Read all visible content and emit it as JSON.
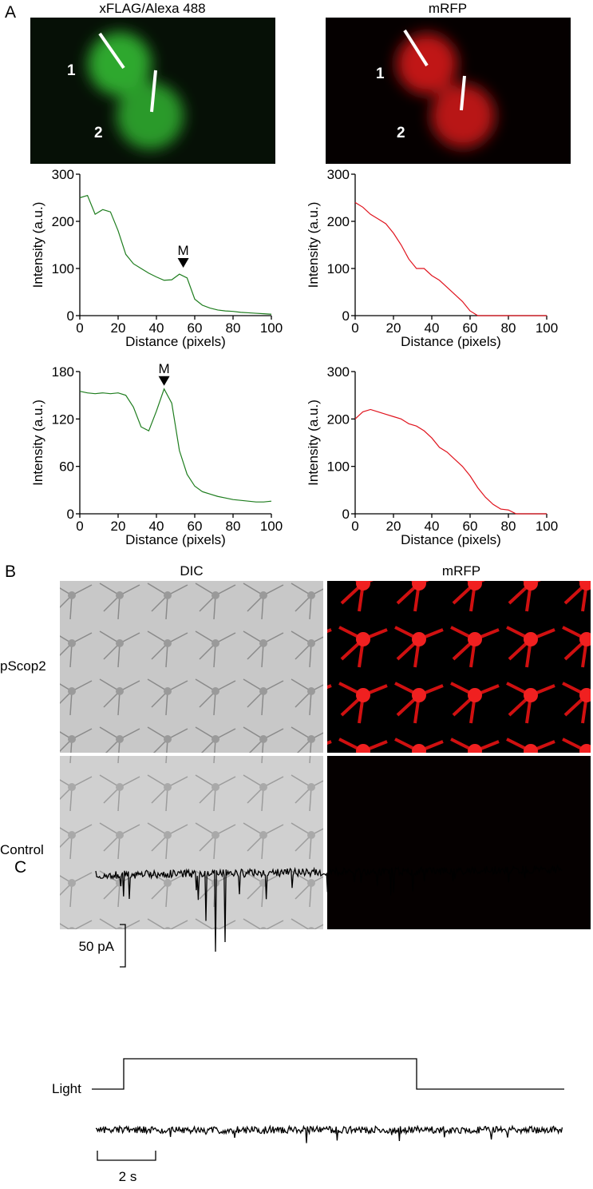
{
  "figure": {
    "panel_labels": [
      "A",
      "B",
      "C"
    ],
    "a_titles": [
      "xFLAG/Alexa 488",
      "mRFP"
    ],
    "cell_labels": [
      "1",
      "2",
      "1",
      "2"
    ],
    "b_titles": [
      "DIC",
      "mRFP"
    ],
    "b_rows": [
      "pScop2",
      "Control"
    ],
    "current_scale": "50 pA",
    "light_label": "Light",
    "time_scale": "2 s"
  },
  "chart_data": [
    {
      "type": "line",
      "xlabel": "Distance (pixels)",
      "ylabel": "Intensity (a.u.)",
      "x": [
        0,
        4,
        8,
        12,
        16,
        20,
        24,
        28,
        32,
        36,
        40,
        44,
        48,
        52,
        56,
        60,
        64,
        68,
        72,
        76,
        80,
        84,
        88,
        92,
        96,
        100
      ],
      "series": [
        {
          "color": "#1e7d1e",
          "values": [
            250,
            255,
            215,
            225,
            220,
            180,
            130,
            110,
            100,
            90,
            82,
            75,
            76,
            88,
            80,
            35,
            22,
            16,
            12,
            10,
            9,
            7,
            6,
            5,
            4,
            3
          ]
        }
      ],
      "xlim": [
        0,
        100
      ],
      "ylim": [
        0,
        300
      ],
      "xticks": [
        0,
        20,
        40,
        60,
        80,
        100
      ],
      "yticks": [
        0,
        100,
        200,
        300
      ],
      "annotations": [
        {
          "text": "M",
          "x": 54,
          "y": 95
        }
      ]
    },
    {
      "type": "line",
      "xlabel": "Distance (pixels)",
      "ylabel": "Intensity (a.u.)",
      "x": [
        0,
        4,
        8,
        12,
        16,
        20,
        24,
        28,
        32,
        36,
        40,
        44,
        48,
        52,
        56,
        60,
        64,
        68,
        72,
        76,
        80,
        84,
        88,
        92,
        96,
        100
      ],
      "series": [
        {
          "color": "#e0141e",
          "values": [
            240,
            230,
            215,
            205,
            195,
            175,
            150,
            120,
            100,
            100,
            85,
            75,
            60,
            45,
            30,
            10,
            0,
            0,
            0,
            0,
            0,
            0,
            0,
            0,
            0,
            0
          ]
        }
      ],
      "xlim": [
        0,
        100
      ],
      "ylim": [
        0,
        300
      ],
      "xticks": [
        0,
        20,
        40,
        60,
        80,
        100
      ],
      "yticks": [
        0,
        100,
        200,
        300
      ]
    },
    {
      "type": "line",
      "xlabel": "Distance (pixels)",
      "ylabel": "Intensity (a.u.)",
      "x": [
        0,
        4,
        8,
        12,
        16,
        20,
        24,
        28,
        32,
        36,
        40,
        44,
        48,
        52,
        56,
        60,
        64,
        68,
        72,
        76,
        80,
        84,
        88,
        92,
        96,
        100
      ],
      "series": [
        {
          "color": "#1e7d1e",
          "values": [
            155,
            153,
            152,
            153,
            152,
            153,
            150,
            135,
            110,
            105,
            130,
            158,
            140,
            80,
            50,
            35,
            28,
            25,
            22,
            20,
            18,
            17,
            16,
            15,
            15,
            16
          ]
        }
      ],
      "xlim": [
        0,
        100
      ],
      "ylim": [
        0,
        180
      ],
      "xticks": [
        0,
        20,
        40,
        60,
        80,
        100
      ],
      "yticks": [
        0,
        60,
        120,
        180
      ],
      "annotations": [
        {
          "text": "M",
          "x": 44,
          "y": 158
        }
      ]
    },
    {
      "type": "line",
      "xlabel": "Distance (pixels)",
      "ylabel": "Intensity (a.u.)",
      "x": [
        0,
        4,
        8,
        12,
        16,
        20,
        24,
        28,
        32,
        36,
        40,
        44,
        48,
        52,
        56,
        60,
        64,
        68,
        72,
        76,
        80,
        84,
        88,
        92,
        96,
        100
      ],
      "series": [
        {
          "color": "#e0141e",
          "values": [
            200,
            215,
            220,
            215,
            210,
            205,
            200,
            190,
            185,
            175,
            160,
            140,
            130,
            115,
            100,
            80,
            55,
            35,
            20,
            10,
            8,
            0,
            0,
            0,
            0,
            0
          ]
        }
      ],
      "xlim": [
        0,
        100
      ],
      "ylim": [
        0,
        300
      ],
      "xticks": [
        0,
        20,
        40,
        60,
        80,
        100
      ],
      "yticks": [
        0,
        100,
        200,
        300
      ]
    }
  ]
}
